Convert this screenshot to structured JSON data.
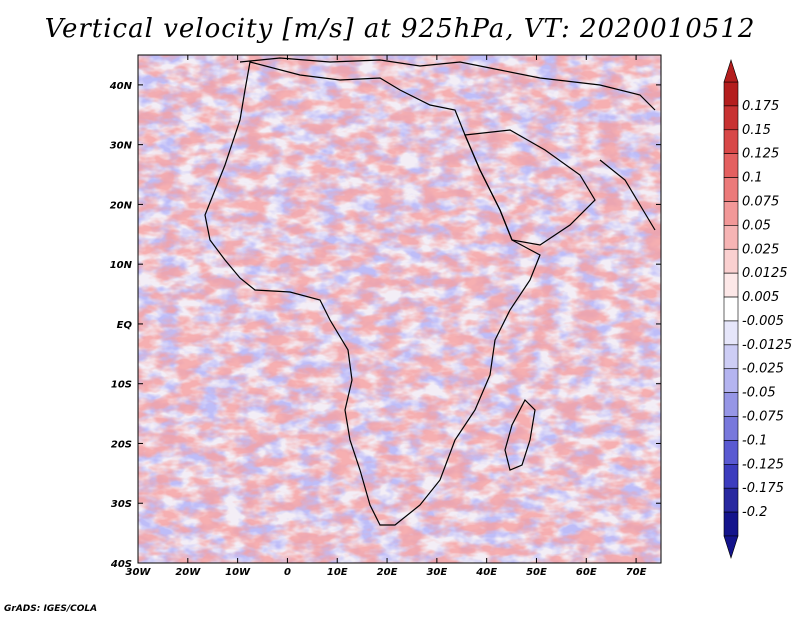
{
  "title": "Vertical velocity [m/s] at 925hPa, VT: 2020010512",
  "map": {
    "region": "Africa",
    "lon_range": [
      -30,
      75
    ],
    "lat_range": [
      -40,
      45
    ],
    "lat_ticks": [
      "40N",
      "30N",
      "20N",
      "10N",
      "EQ",
      "10S",
      "20S",
      "30S",
      "40S"
    ],
    "lon_ticks": [
      "30W",
      "20W",
      "10W",
      "0",
      "10E",
      "20E",
      "30E",
      "40E",
      "50E",
      "60E",
      "70E"
    ],
    "field": "vertical velocity",
    "units": "m/s",
    "level": "925hPa",
    "valid_time": "2020010512"
  },
  "colorbar": {
    "levels": [
      "0.175",
      "0.15",
      "0.125",
      "0.1",
      "0.075",
      "0.05",
      "0.025",
      "0.0125",
      "0.005",
      "-0.005",
      "-0.0125",
      "-0.025",
      "-0.05",
      "-0.075",
      "-0.1",
      "-0.125",
      "-0.175",
      "-0.2"
    ],
    "colors": [
      "#b41e1e",
      "#c83232",
      "#d84848",
      "#e46060",
      "#ec7a7a",
      "#f29898",
      "#f6b4b4",
      "#fad0d0",
      "#fde8e8",
      "#ffffff",
      "#e6e6fa",
      "#cdcdf5",
      "#b4b4f0",
      "#9696e6",
      "#7878dc",
      "#5a5ad2",
      "#3c3cbe",
      "#2828a0",
      "#14148c"
    ]
  },
  "credit": "GrADS: IGES/COLA"
}
